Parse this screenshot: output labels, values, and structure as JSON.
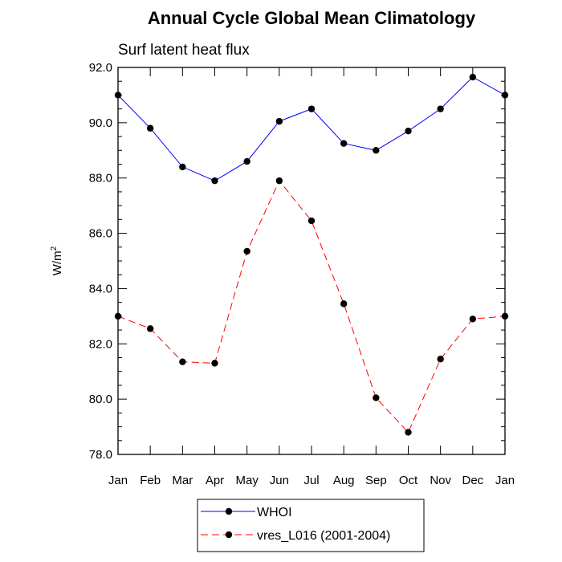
{
  "chart_data": {
    "type": "line",
    "title": "Annual Cycle Global Mean Climatology",
    "subtitle": "Surf latent heat flux",
    "ylabel": "W/m",
    "ylabel_superscript": "2",
    "xlabel": "",
    "categories": [
      "Jan",
      "Feb",
      "Mar",
      "Apr",
      "May",
      "Jun",
      "Jul",
      "Aug",
      "Sep",
      "Oct",
      "Nov",
      "Dec",
      "Jan"
    ],
    "ylim": [
      78.0,
      92.0
    ],
    "yticks": [
      "78.0",
      "80.0",
      "82.0",
      "84.0",
      "86.0",
      "88.0",
      "90.0",
      "92.0"
    ],
    "grid": false,
    "legend_position": "bottom",
    "series": [
      {
        "name": "WHOI",
        "color": "#0000ff",
        "line_style": "solid",
        "marker": "filled-circle",
        "values": [
          91.0,
          89.8,
          88.4,
          87.9,
          88.6,
          90.05,
          90.5,
          89.25,
          89.0,
          89.7,
          90.5,
          91.65,
          91.0
        ]
      },
      {
        "name": "vres_L016 (2001-2004)",
        "color": "#ff0000",
        "line_style": "dashed",
        "marker": "filled-circle",
        "values": [
          83.0,
          82.55,
          81.35,
          81.3,
          85.35,
          87.9,
          86.45,
          83.45,
          80.05,
          78.8,
          81.45,
          82.9,
          83.0
        ]
      }
    ]
  }
}
